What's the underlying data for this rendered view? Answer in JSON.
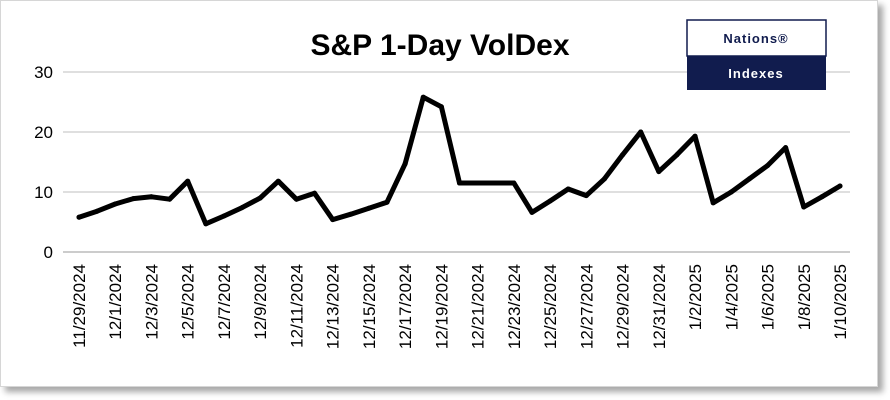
{
  "logo": {
    "top_text": "Nations®",
    "bottom_text": "Indexes",
    "brand_color": "#111c4e"
  },
  "chart_data": {
    "type": "line",
    "title": "S&P 1-Day VolDex",
    "xlabel": "",
    "ylabel": "",
    "ylim": [
      0,
      30
    ],
    "yticks": [
      0,
      10,
      20,
      30
    ],
    "grid": true,
    "legend": "none",
    "line_color": "#000000",
    "x_tick_labels": [
      "11/29/2024",
      "12/1/2024",
      "12/3/2024",
      "12/5/2024",
      "12/7/2024",
      "12/9/2024",
      "12/11/2024",
      "12/13/2024",
      "12/15/2024",
      "12/17/2024",
      "12/19/2024",
      "12/21/2024",
      "12/23/2024",
      "12/25/2024",
      "12/27/2024",
      "12/29/2024",
      "12/31/2024",
      "1/2/2025",
      "1/4/2025",
      "1/6/2025",
      "1/8/2025",
      "1/10/2025"
    ],
    "x": [
      "11/29/2024",
      "11/30/2024",
      "12/1/2024",
      "12/2/2024",
      "12/3/2024",
      "12/4/2024",
      "12/5/2024",
      "12/6/2024",
      "12/7/2024",
      "12/8/2024",
      "12/9/2024",
      "12/10/2024",
      "12/11/2024",
      "12/12/2024",
      "12/13/2024",
      "12/14/2024",
      "12/15/2024",
      "12/16/2024",
      "12/17/2024",
      "12/18/2024",
      "12/19/2024",
      "12/20/2024",
      "12/21/2024",
      "12/22/2024",
      "12/23/2024",
      "12/24/2024",
      "12/25/2024",
      "12/26/2024",
      "12/27/2024",
      "12/28/2024",
      "12/29/2024",
      "12/30/2024",
      "12/31/2024",
      "1/1/2025",
      "1/2/2025",
      "1/3/2025",
      "1/4/2025",
      "1/5/2025",
      "1/6/2025",
      "1/7/2025",
      "1/8/2025",
      "1/9/2025",
      "1/10/2025"
    ],
    "values": [
      5.8,
      6.8,
      8.0,
      8.9,
      9.2,
      8.8,
      11.8,
      4.7,
      6.0,
      7.4,
      9.0,
      11.8,
      8.8,
      9.8,
      5.4,
      6.3,
      7.3,
      8.3,
      14.7,
      25.8,
      24.2,
      11.5,
      11.5,
      11.5,
      11.5,
      6.6,
      8.5,
      10.5,
      9.4,
      12.2,
      16.2,
      20.0,
      13.4,
      16.2,
      19.3,
      8.2,
      10.0,
      12.2,
      14.4,
      17.4,
      7.5,
      9.2,
      11.0
    ]
  }
}
